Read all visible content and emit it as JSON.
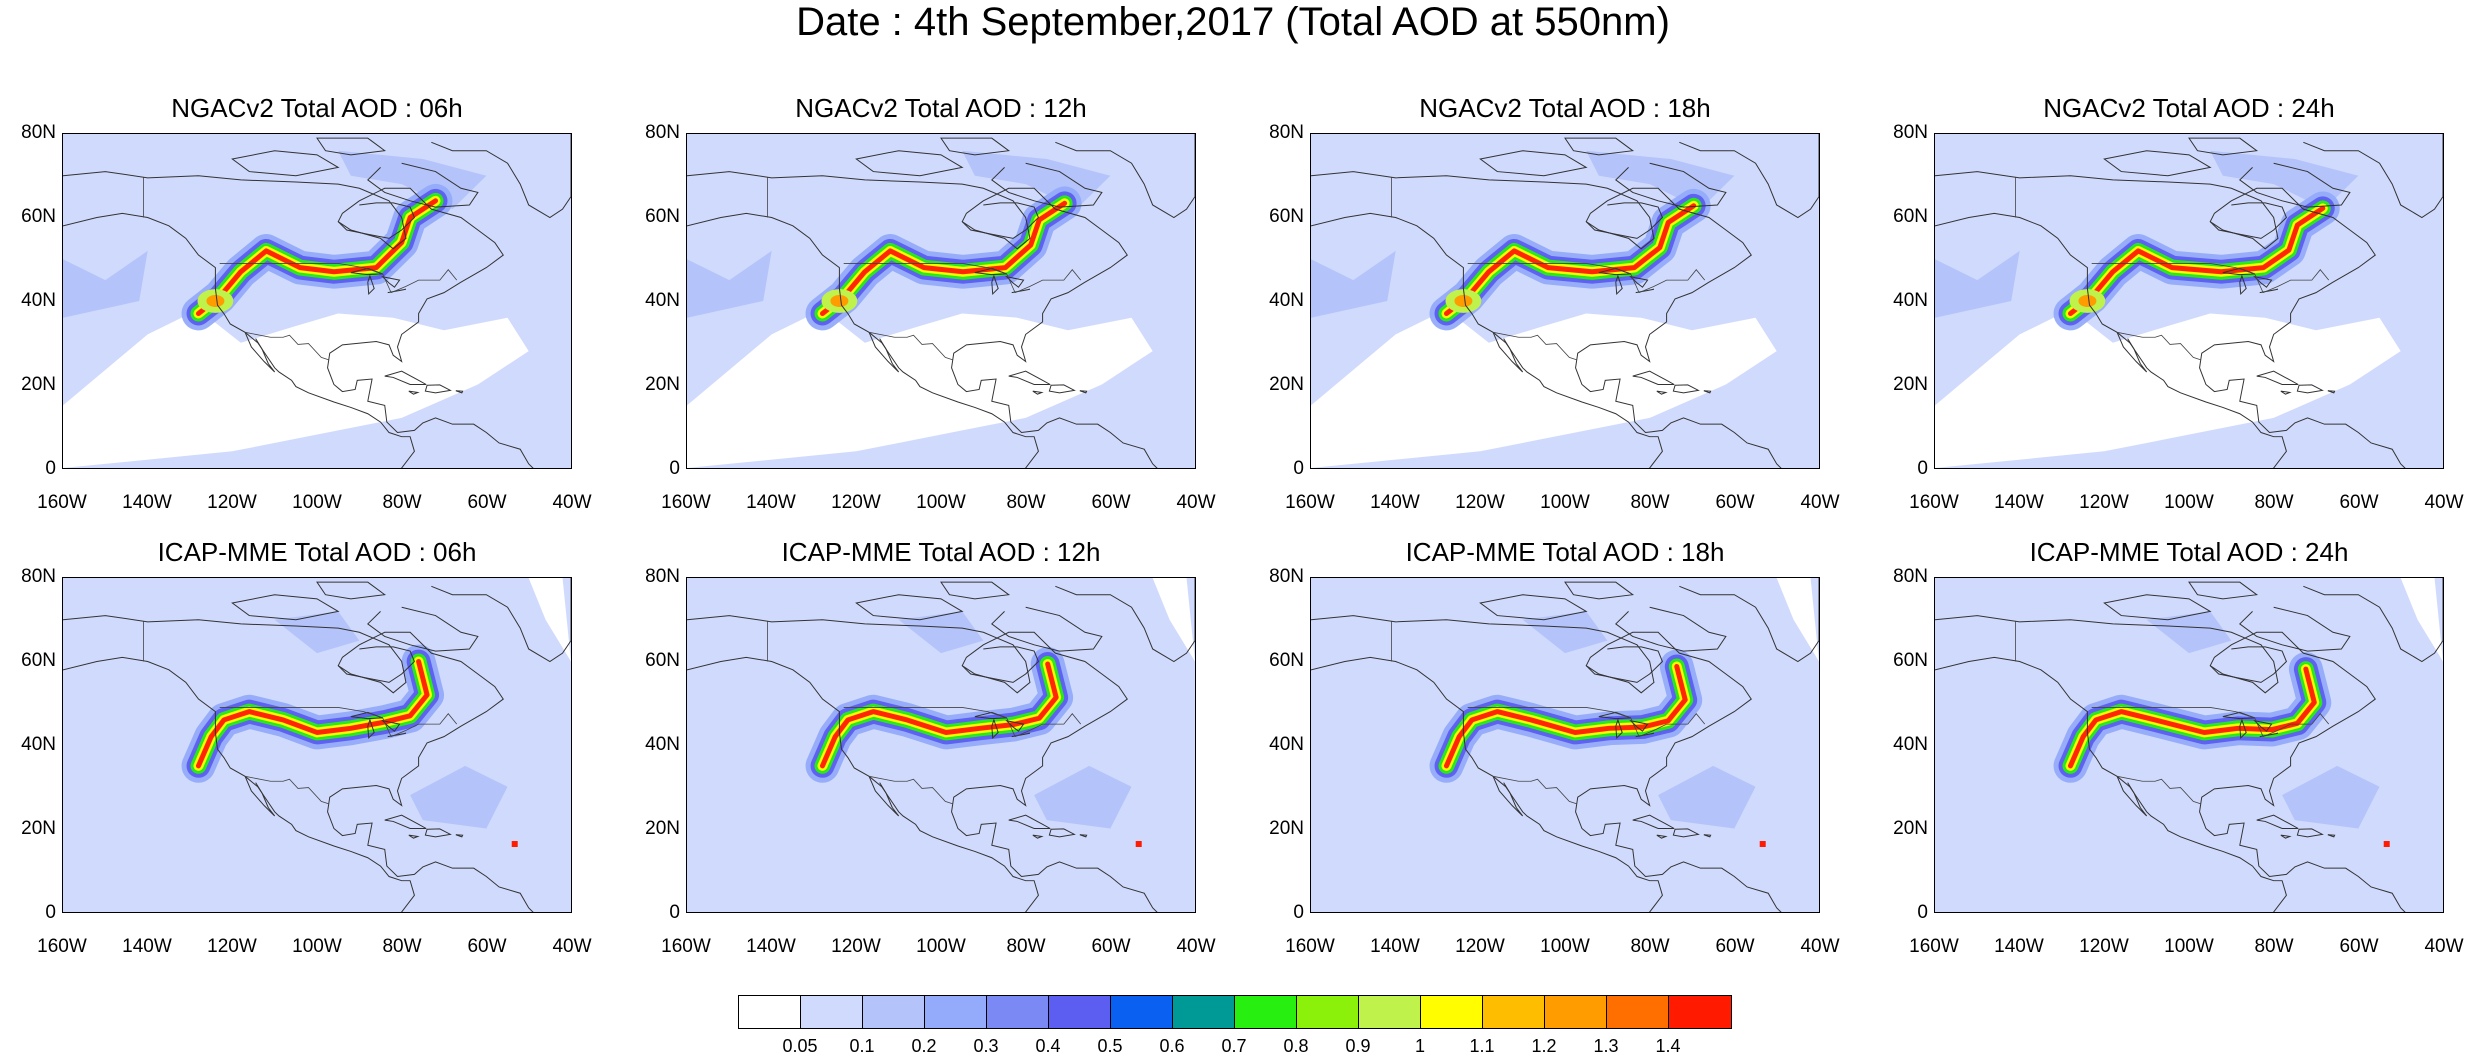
{
  "title": "Date : 4th September,2017 (Total AOD at 550nm)",
  "panels": [
    {
      "title": "NGACv2 Total AOD : 06h"
    },
    {
      "title": "NGACv2 Total AOD : 12h"
    },
    {
      "title": "NGACv2 Total AOD : 18h"
    },
    {
      "title": "NGACv2 Total AOD : 24h"
    },
    {
      "title": "ICAP-MME Total AOD : 06h"
    },
    {
      "title": "ICAP-MME Total AOD : 12h"
    },
    {
      "title": "ICAP-MME Total AOD : 18h"
    },
    {
      "title": "ICAP-MME Total AOD : 24h"
    }
  ],
  "y_ticks": [
    "80N",
    "60N",
    "40N",
    "20N",
    "0"
  ],
  "x_ticks": [
    "160W",
    "140W",
    "120W",
    "100W",
    "80W",
    "60W",
    "40W"
  ],
  "colorbar": {
    "labels": [
      "0.05",
      "0.1",
      "0.2",
      "0.3",
      "0.4",
      "0.5",
      "0.6",
      "0.7",
      "0.8",
      "0.9",
      "1",
      "1.1",
      "1.2",
      "1.3",
      "1.4"
    ],
    "colors": [
      "#ffffff",
      "#d0dafd",
      "#b4c3fa",
      "#93abfa",
      "#7b89f5",
      "#5b5ef0",
      "#0a60f0",
      "#009a96",
      "#27ef10",
      "#8bf00a",
      "#bff24a",
      "#fffd00",
      "#ffbd00",
      "#ff9c00",
      "#ff6f00",
      "#ff1a00"
    ]
  }
}
